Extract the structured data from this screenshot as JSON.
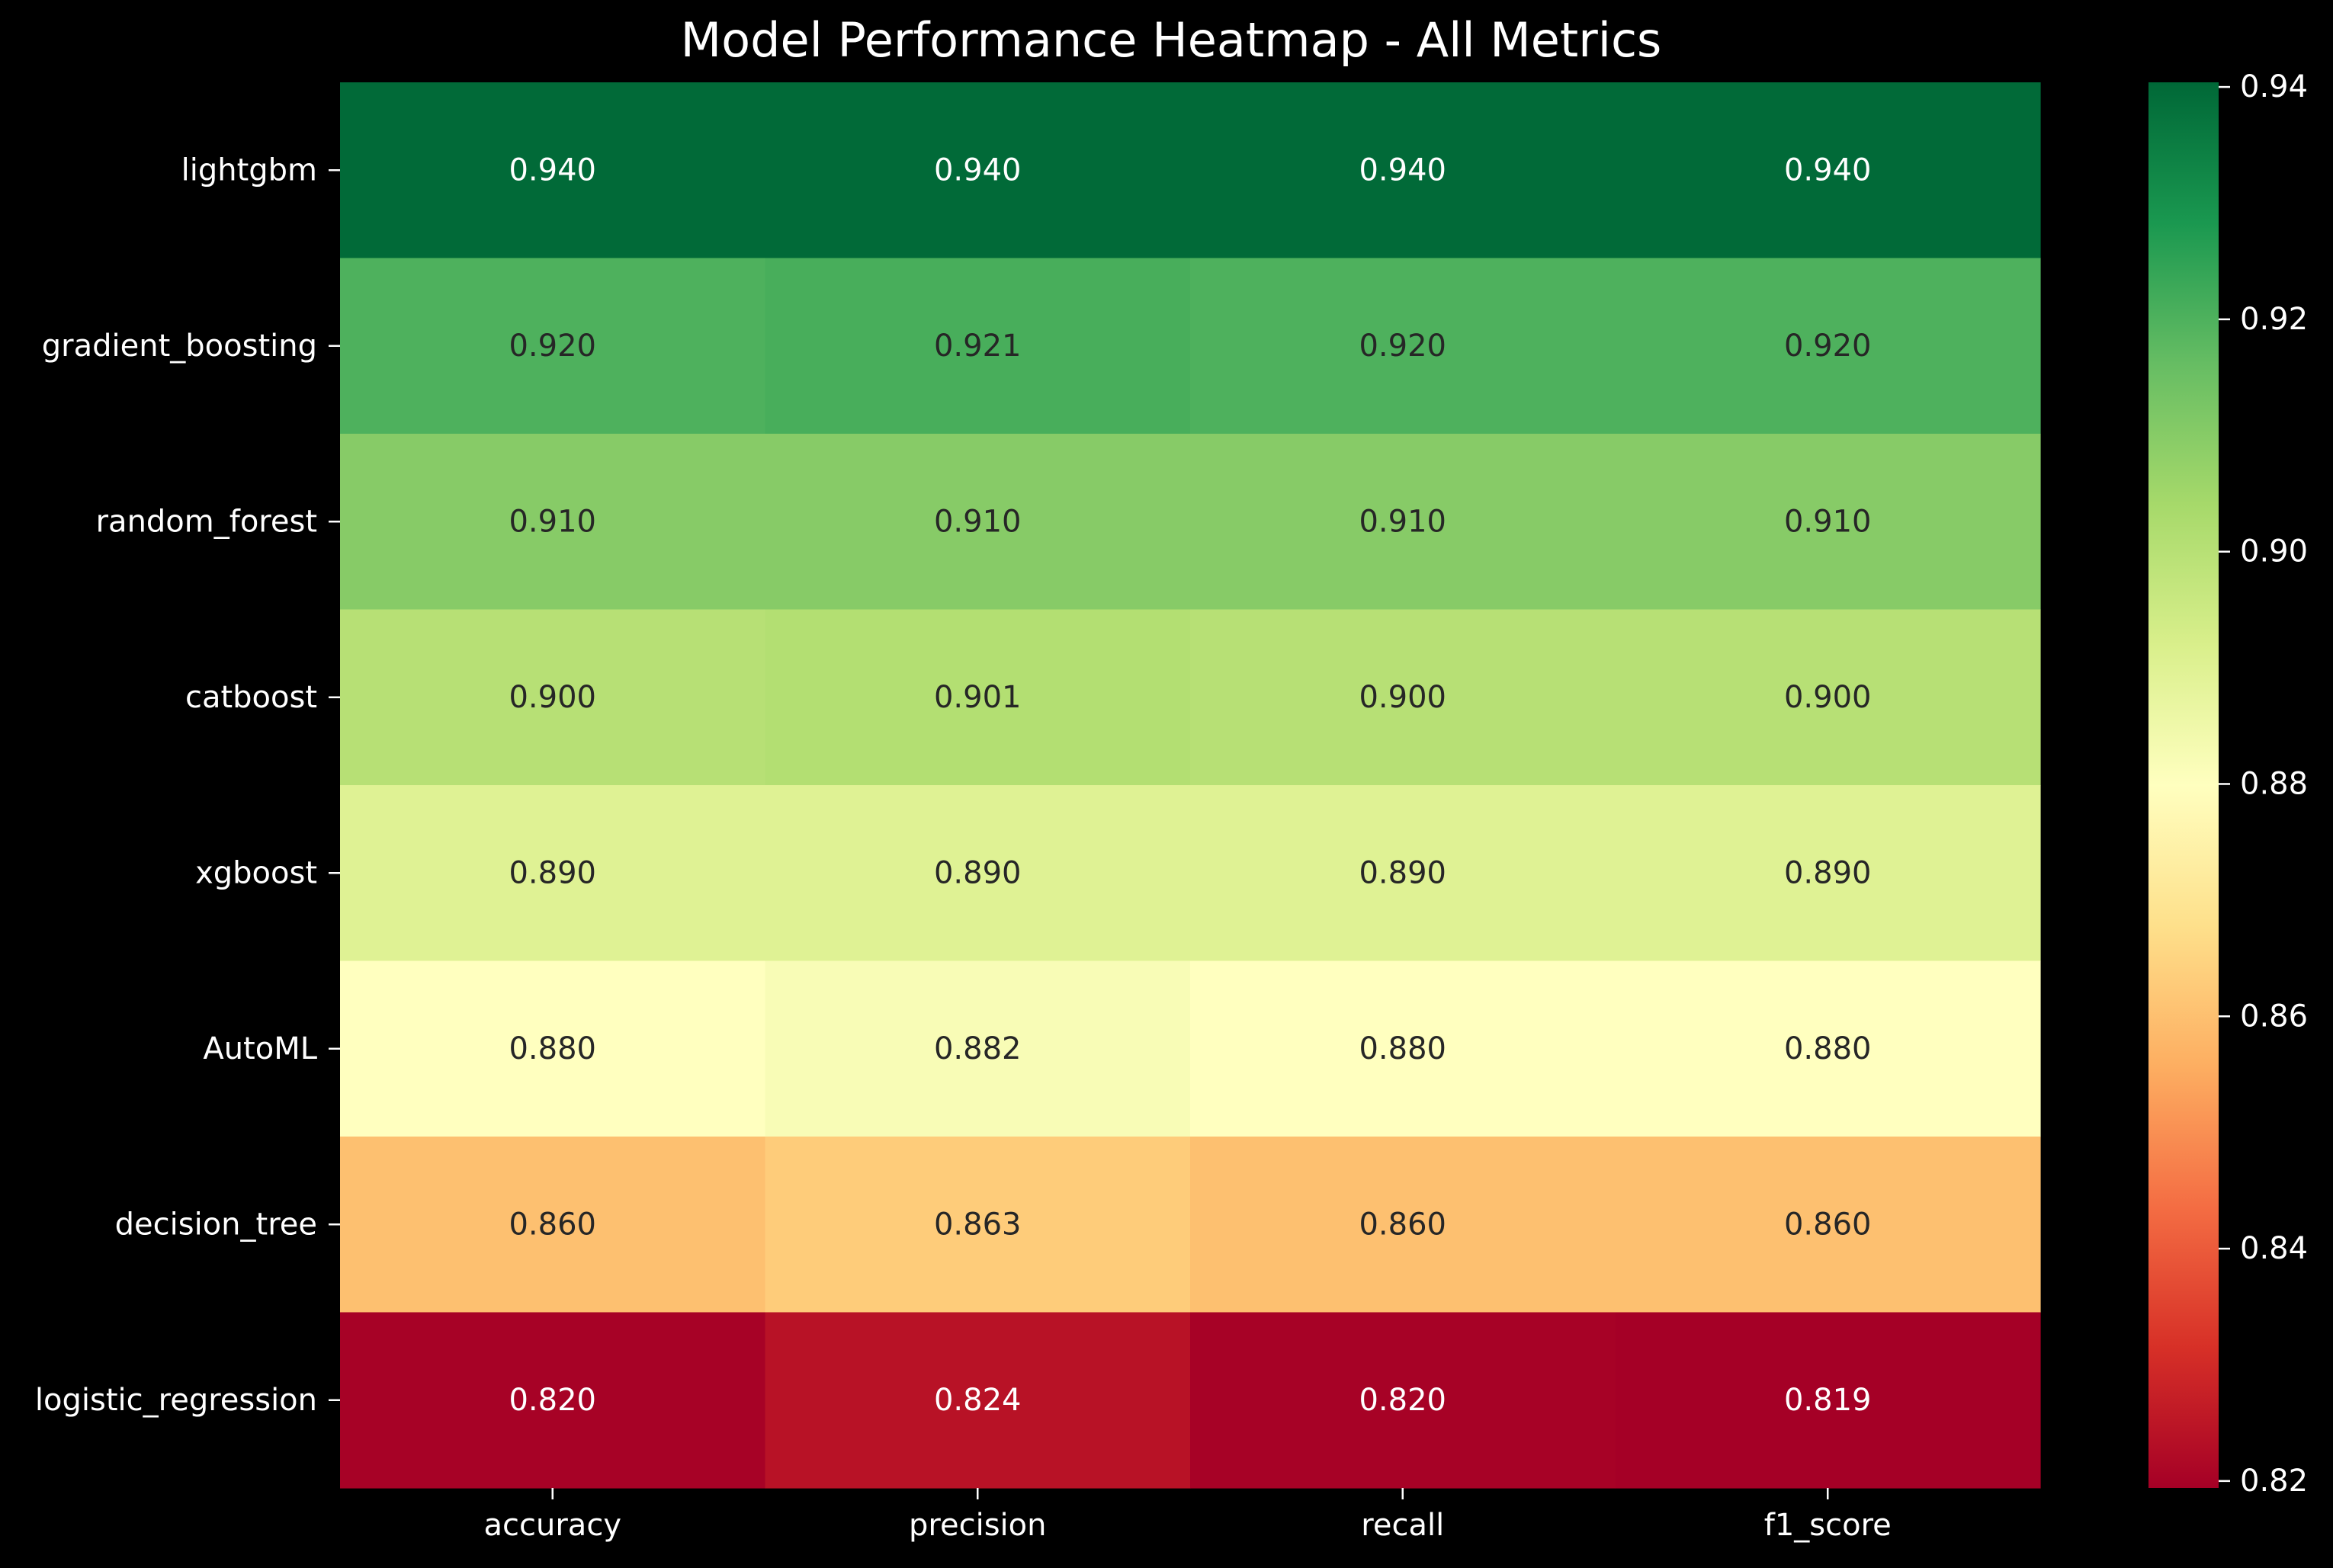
{
  "chart_data": {
    "type": "heatmap",
    "title": "Model Performance Heatmap - All Metrics",
    "xlabel": "",
    "ylabel": "",
    "columns": [
      "accuracy",
      "precision",
      "recall",
      "f1_score"
    ],
    "rows": [
      "lightgbm",
      "gradient_boosting",
      "random_forest",
      "catboost",
      "xgboost",
      "AutoML",
      "decision_tree",
      "logistic_regression"
    ],
    "values": [
      [
        0.94,
        0.94,
        0.94,
        0.94
      ],
      [
        0.92,
        0.921,
        0.92,
        0.92
      ],
      [
        0.91,
        0.91,
        0.91,
        0.91
      ],
      [
        0.9,
        0.901,
        0.9,
        0.9
      ],
      [
        0.89,
        0.89,
        0.89,
        0.89
      ],
      [
        0.88,
        0.882,
        0.88,
        0.88
      ],
      [
        0.86,
        0.863,
        0.86,
        0.86
      ],
      [
        0.82,
        0.824,
        0.82,
        0.819
      ]
    ],
    "annotation_format": "0.000",
    "colormap": "RdYlGn",
    "vmin": 0.8194,
    "vmax": 0.9404,
    "colorbar_ticks": [
      0.82,
      0.84,
      0.86,
      0.88,
      0.9,
      0.92,
      0.94
    ],
    "colorbar_tick_labels": [
      "0.82",
      "0.84",
      "0.86",
      "0.88",
      "0.90",
      "0.92",
      "0.94"
    ],
    "grid": false,
    "legend": "colorbar-right"
  },
  "colors": {
    "background": "#000000",
    "text": "#ffffff",
    "annotation_dark": "#262626",
    "annotation_light": "#ffffff",
    "colormap_stops": [
      "#a50026",
      "#d73027",
      "#f46d43",
      "#fdae61",
      "#fee08b",
      "#ffffbf",
      "#d9ef8b",
      "#a6d96a",
      "#66bd63",
      "#1a9850",
      "#006837"
    ]
  }
}
